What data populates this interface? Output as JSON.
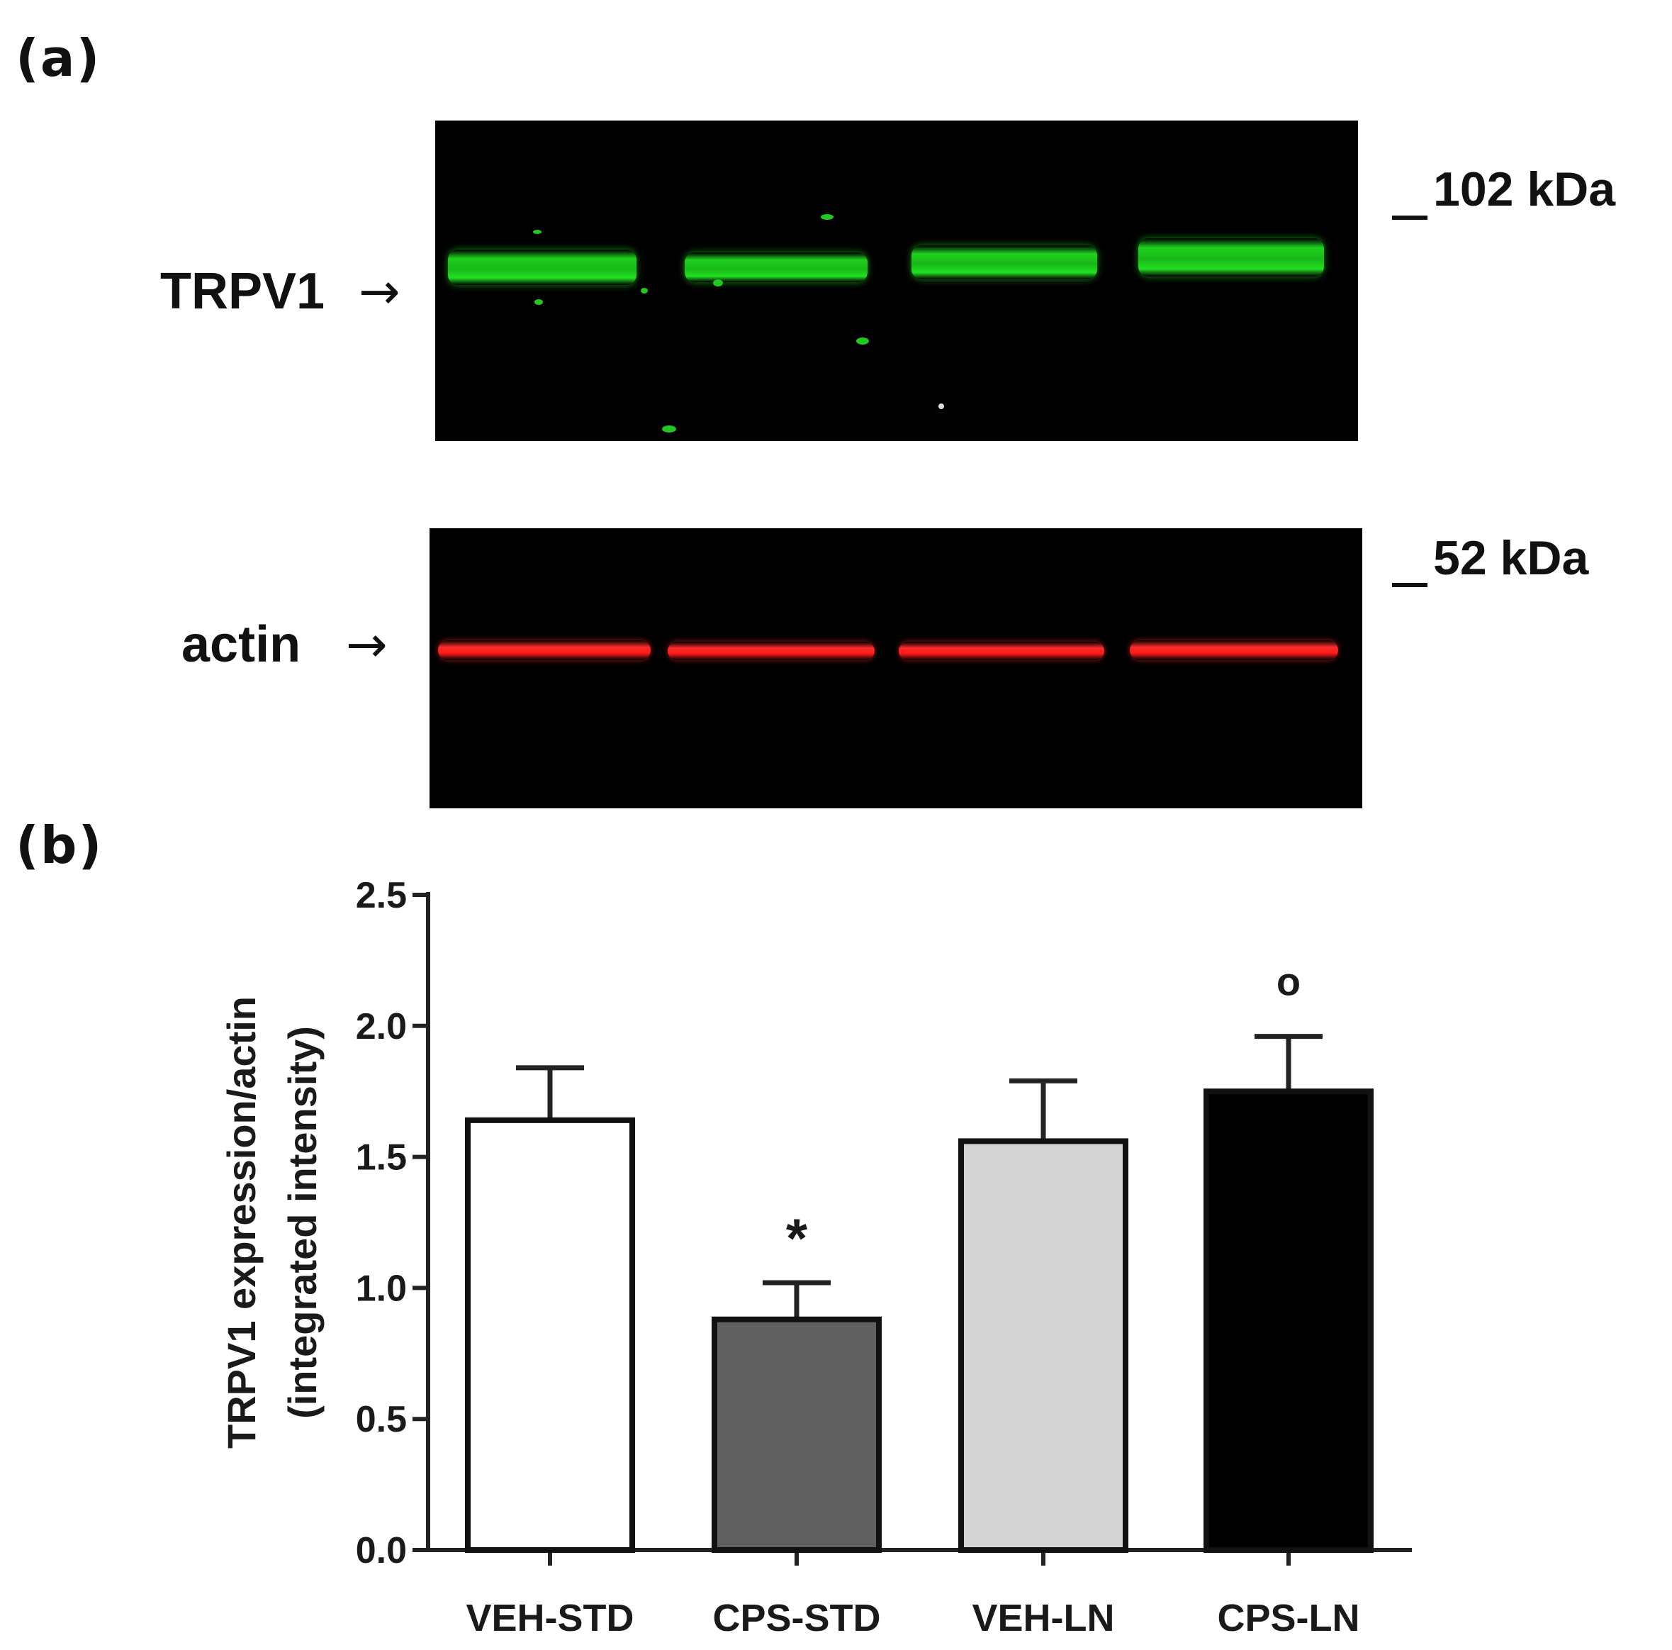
{
  "panels": {
    "a_label": "(a)",
    "b_label": "(b)"
  },
  "western_blot": {
    "trpv1_label": "TRPV1",
    "actin_label": "actin",
    "arrow": "→",
    "marker_102": "102 kDa",
    "marker_52": "52 kDa",
    "trpv1_band_color": "#1fd11f",
    "actin_band_color": "#ff1a1a",
    "background_color": "#000000"
  },
  "chart_data": {
    "type": "bar",
    "categories": [
      "VEH-STD",
      "CPS-STD",
      "VEH-LN",
      "CPS-LN"
    ],
    "values": [
      1.64,
      0.88,
      1.56,
      1.75
    ],
    "errors": [
      0.2,
      0.14,
      0.23,
      0.21
    ],
    "bar_colors": [
      "#ffffff",
      "#606060",
      "#d4d4d4",
      "#000000"
    ],
    "significance": [
      "",
      "*",
      "",
      "o"
    ],
    "ylabel_line1": "TRPV1 expression/actin",
    "ylabel_line2": "(integrated intensity)",
    "ylim": [
      0,
      2.5
    ],
    "yticks": [
      "0.0",
      "0.5",
      "1.0",
      "1.5",
      "2.0",
      "2.5"
    ],
    "grid": false
  }
}
